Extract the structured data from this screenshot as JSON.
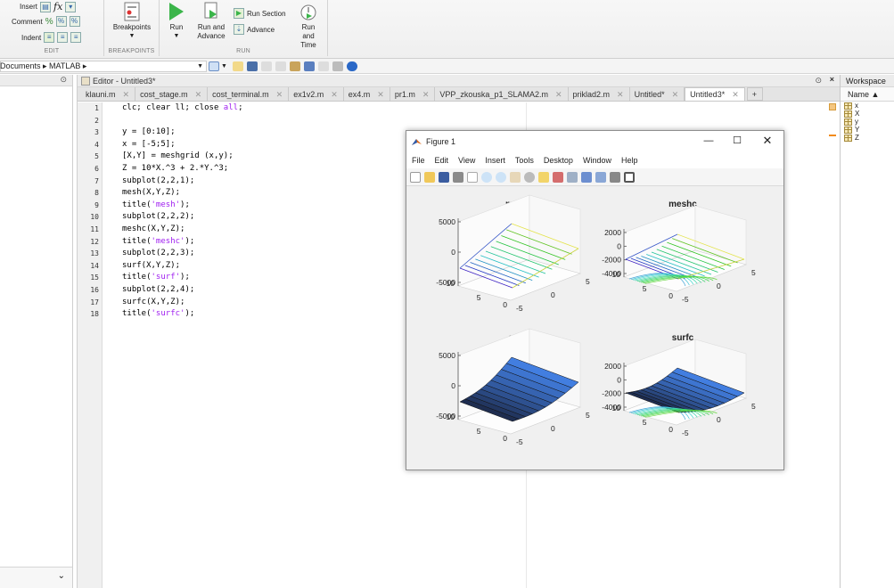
{
  "toolstrip": {
    "edit": {
      "insert_label": "Insert",
      "comment_label": "Comment",
      "indent_label": "Indent",
      "caption": "EDIT"
    },
    "breakpoints": {
      "label": "Breakpoints",
      "caption": "BREAKPOINTS"
    },
    "run": {
      "run_label": "Run",
      "run_advance_label": "Run and Advance",
      "run_section_label": "Run Section",
      "advance_label": "Advance",
      "run_time_label": "Run and Time",
      "caption": "RUN"
    }
  },
  "address": {
    "path": "Documents ▸ MATLAB ▸"
  },
  "editor": {
    "title": "Editor - Untitled3*",
    "tabs": [
      {
        "label": "klauni.m"
      },
      {
        "label": "cost_stage.m"
      },
      {
        "label": "cost_terminal.m"
      },
      {
        "label": "ex1v2.m"
      },
      {
        "label": "ex4.m"
      },
      {
        "label": "pr1.m"
      },
      {
        "label": "VPP_zkouska_p1_SLAMA2.m"
      },
      {
        "label": "priklad2.m"
      },
      {
        "label": "Untitled*"
      },
      {
        "label": "Untitled3*"
      }
    ],
    "add_tab": "+",
    "lines": [
      "clc; clear ll; close all;",
      "",
      "y = [0:10];",
      "x = [-5;5];",
      "[X,Y] = meshgrid (x,y);",
      "Z = 10*X.^3 + 2.*Y.^3;",
      "subplot(2,2,1);",
      "mesh(X,Y,Z);",
      "title('mesh');",
      "subplot(2,2,2);",
      "meshc(X,Y,Z);",
      "title('meshc');",
      "subplot(2,2,3);",
      "surf(X,Y,Z);",
      "title('surf');",
      "subplot(2,2,4);",
      "surfc(X,Y,Z);",
      "title('surfc');"
    ],
    "line_numbers": [
      "1",
      "2",
      "3",
      "4",
      "5",
      "6",
      "7",
      "8",
      "9",
      "10",
      "11",
      "12",
      "13",
      "14",
      "15",
      "16",
      "17",
      "18"
    ]
  },
  "workspace": {
    "title": "Workspace",
    "name_header": "Name ▲",
    "vars": [
      "x",
      "X",
      "y",
      "Y",
      "Z"
    ]
  },
  "figure": {
    "title": "Figure 1",
    "menu": [
      "File",
      "Edit",
      "View",
      "Insert",
      "Tools",
      "Desktop",
      "Window",
      "Help"
    ],
    "subplots": [
      {
        "title": "mesh",
        "type": "mesh",
        "zticks": [
          "5000",
          "0",
          "-5000"
        ],
        "yticks": [
          "10",
          "5",
          "0"
        ],
        "xticks": [
          "-5",
          "0",
          "5"
        ]
      },
      {
        "title": "meshc",
        "type": "meshc",
        "zticks": [
          "2000",
          "0",
          "-2000",
          "-4000"
        ],
        "yticks": [
          "10",
          "5",
          "0"
        ],
        "xticks": [
          "-5",
          "0",
          "5"
        ]
      },
      {
        "title": "surf",
        "type": "surf",
        "zticks": [
          "5000",
          "0",
          "-5000"
        ],
        "yticks": [
          "10",
          "5",
          "0"
        ],
        "xticks": [
          "-5",
          "0",
          "5"
        ]
      },
      {
        "title": "surfc",
        "type": "surfc",
        "zticks": [
          "2000",
          "0",
          "-2000",
          "-4000"
        ],
        "yticks": [
          "10",
          "5",
          "0"
        ],
        "xticks": [
          "-5",
          "0",
          "5"
        ]
      }
    ]
  },
  "colors": {
    "play": "#3bb54a",
    "string": "#a020f0",
    "surf_dark": "#1f2a9c",
    "surf_light": "#3b6ff0",
    "contour": "#38b7d6"
  }
}
